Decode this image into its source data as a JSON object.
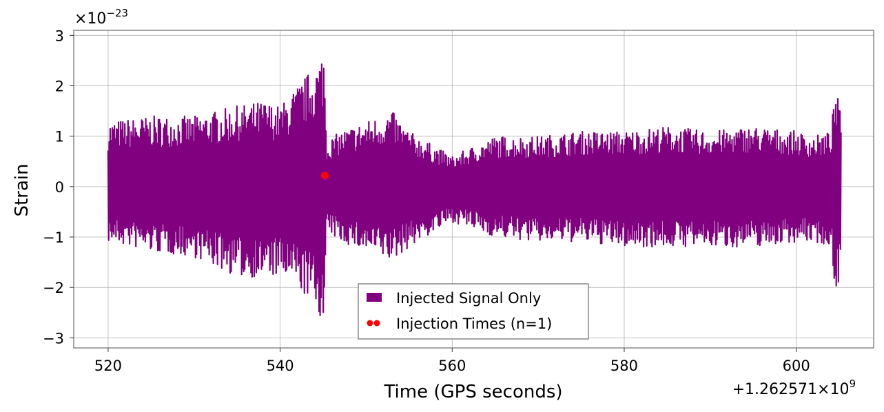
{
  "chart_data": {
    "type": "line",
    "xlabel": "Time (GPS seconds)",
    "ylabel": "Strain",
    "x_offset_label": "+1.262571×10",
    "x_offset_exp": "9",
    "y_multiplier_label": "×10",
    "y_multiplier_exp": "−23",
    "xlim": [
      516,
      609
    ],
    "ylim": [
      -3.2,
      3.1
    ],
    "xticks": [
      520,
      540,
      560,
      580,
      600
    ],
    "xtick_labels": [
      "520",
      "540",
      "560",
      "580",
      "600"
    ],
    "yticks": [
      -3,
      -2,
      -1,
      0,
      1,
      2,
      3
    ],
    "ytick_labels": [
      "−3",
      "−2",
      "−1",
      "0",
      "1",
      "2",
      "3"
    ],
    "grid": true,
    "legend_position": "bottom-center",
    "series": [
      {
        "name": "Injected Signal Only",
        "color": "#800080",
        "x_range": [
          520,
          605.2
        ],
        "envelope_upper": [
          [
            520,
            1.3
          ],
          [
            525,
            1.4
          ],
          [
            530,
            1.4
          ],
          [
            535,
            1.6
          ],
          [
            538,
            1.7
          ],
          [
            540,
            1.6
          ],
          [
            542,
            2.0
          ],
          [
            543.5,
            2.3
          ],
          [
            544.5,
            2.5
          ],
          [
            545.1,
            2.8
          ],
          [
            545.4,
            0.9
          ],
          [
            547,
            1.1
          ],
          [
            550,
            1.3
          ],
          [
            553,
            1.5
          ],
          [
            555,
            1.1
          ],
          [
            558,
            0.8
          ],
          [
            560,
            0.6
          ],
          [
            565,
            1.0
          ],
          [
            570,
            1.0
          ],
          [
            575,
            1.1
          ],
          [
            580,
            1.1
          ],
          [
            585,
            1.2
          ],
          [
            590,
            1.1
          ],
          [
            595,
            1.2
          ],
          [
            600,
            1.1
          ],
          [
            602,
            1.0
          ],
          [
            604,
            1.1
          ],
          [
            604.6,
            2.0
          ],
          [
            605.2,
            1.4
          ]
        ],
        "envelope_lower": [
          [
            520,
            -1.1
          ],
          [
            525,
            -1.3
          ],
          [
            530,
            -1.4
          ],
          [
            535,
            -1.8
          ],
          [
            538,
            -1.8
          ],
          [
            540,
            -1.8
          ],
          [
            542,
            -2.0
          ],
          [
            543.5,
            -2.3
          ],
          [
            544.5,
            -2.5
          ],
          [
            545.1,
            -2.9
          ],
          [
            545.4,
            -0.9
          ],
          [
            547,
            -1.1
          ],
          [
            550,
            -1.3
          ],
          [
            553,
            -1.5
          ],
          [
            555,
            -1.2
          ],
          [
            558,
            -0.9
          ],
          [
            560,
            -0.7
          ],
          [
            565,
            -1.0
          ],
          [
            570,
            -1.1
          ],
          [
            575,
            -1.1
          ],
          [
            580,
            -1.2
          ],
          [
            585,
            -1.2
          ],
          [
            590,
            -1.2
          ],
          [
            595,
            -1.2
          ],
          [
            600,
            -1.1
          ],
          [
            602,
            -1.1
          ],
          [
            604,
            -1.2
          ],
          [
            604.6,
            -2.2
          ],
          [
            605.2,
            -1.6
          ]
        ]
      },
      {
        "name": "Injection Times (n=1)",
        "type": "scatter",
        "color": "#ff0000",
        "x": [
          545.2
        ],
        "y": [
          0.22
        ]
      }
    ]
  }
}
